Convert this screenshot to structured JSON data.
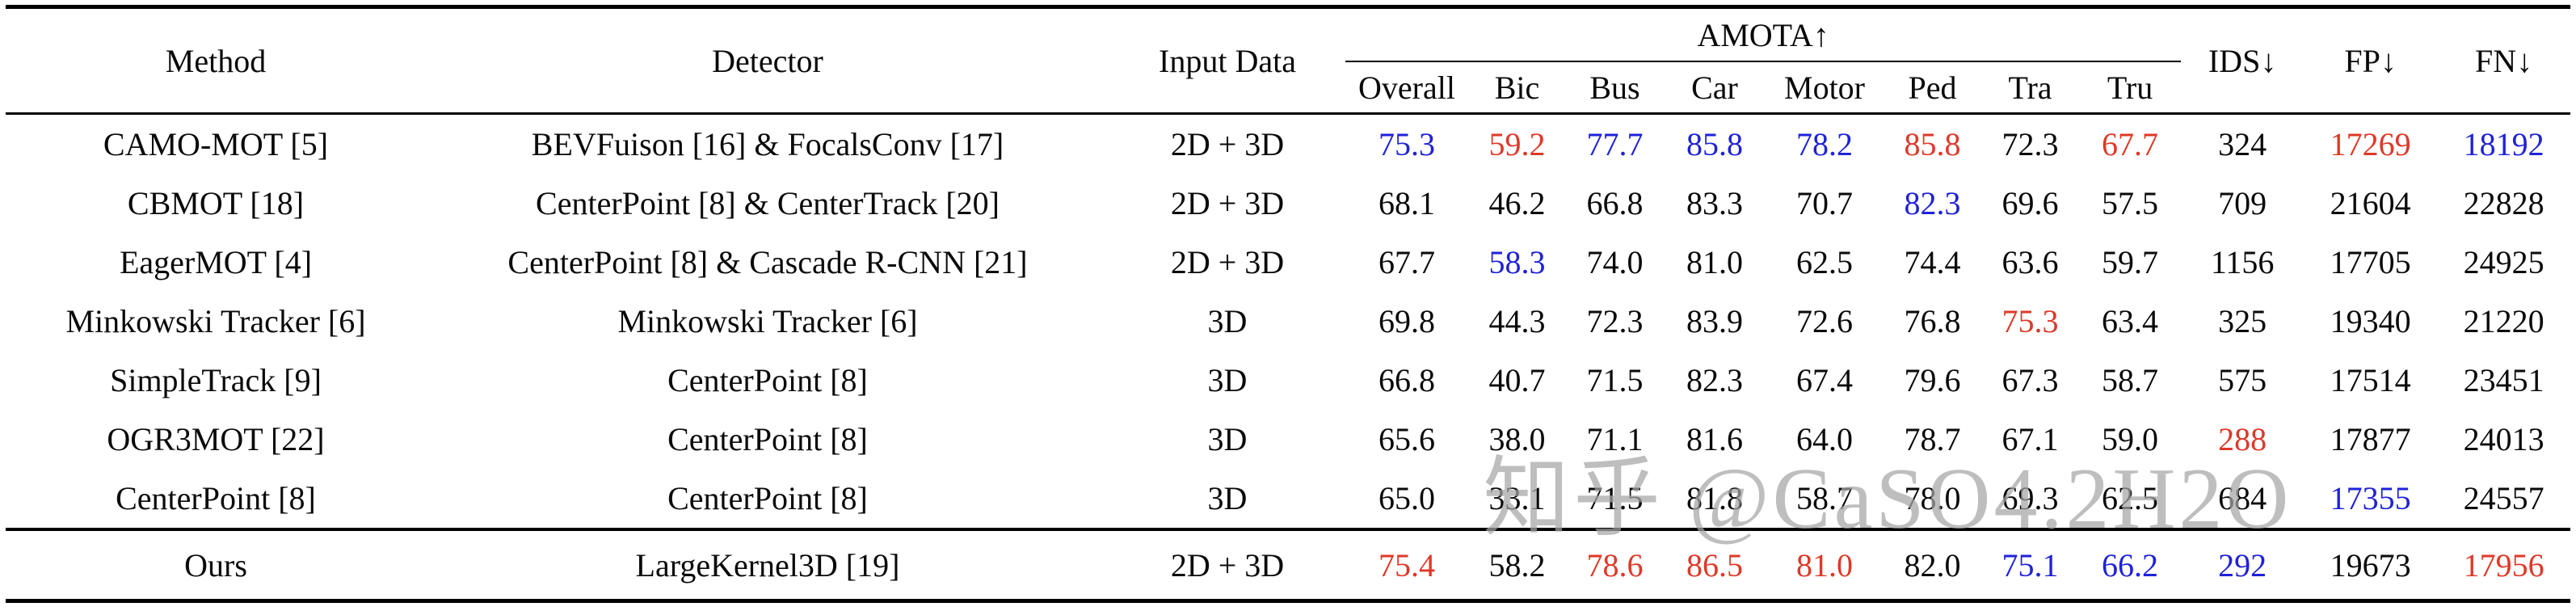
{
  "colors": {
    "best": "#df3827",
    "second": "#1f22d8",
    "normal": "#0a0a0a"
  },
  "watermark": "知乎 @CaSO4.2H2O",
  "table": {
    "headers": {
      "method": "Method",
      "detector": "Detector",
      "input_data": "Input Data",
      "amota_group": "AMOTA↑",
      "amota_subcols": [
        "Overall",
        "Bic",
        "Bus",
        "Car",
        "Motor",
        "Ped",
        "Tra",
        "Tru"
      ],
      "ids": "IDS↓",
      "fp": "FP↓",
      "fn": "FN↓"
    },
    "rows": [
      {
        "method": "CAMO-MOT [5]",
        "detector": "BEVFuison [16] & FocalsConv [17]",
        "input": "2D + 3D",
        "amota": [
          [
            "75.3",
            "second"
          ],
          [
            "59.2",
            "best"
          ],
          [
            "77.7",
            "second"
          ],
          [
            "85.8",
            "second"
          ],
          [
            "78.2",
            "second"
          ],
          [
            "85.8",
            "best"
          ],
          [
            "72.3",
            "normal"
          ],
          [
            "67.7",
            "best"
          ]
        ],
        "ids": [
          "324",
          "normal"
        ],
        "fp": [
          "17269",
          "best"
        ],
        "fn": [
          "18192",
          "second"
        ],
        "ours": false
      },
      {
        "method": "CBMOT [18]",
        "detector": "CenterPoint [8] & CenterTrack [20]",
        "input": "2D + 3D",
        "amota": [
          [
            "68.1",
            "normal"
          ],
          [
            "46.2",
            "normal"
          ],
          [
            "66.8",
            "normal"
          ],
          [
            "83.3",
            "normal"
          ],
          [
            "70.7",
            "normal"
          ],
          [
            "82.3",
            "second"
          ],
          [
            "69.6",
            "normal"
          ],
          [
            "57.5",
            "normal"
          ]
        ],
        "ids": [
          "709",
          "normal"
        ],
        "fp": [
          "21604",
          "normal"
        ],
        "fn": [
          "22828",
          "normal"
        ],
        "ours": false
      },
      {
        "method": "EagerMOT [4]",
        "detector": "CenterPoint [8] & Cascade R-CNN [21]",
        "input": "2D + 3D",
        "amota": [
          [
            "67.7",
            "normal"
          ],
          [
            "58.3",
            "second"
          ],
          [
            "74.0",
            "normal"
          ],
          [
            "81.0",
            "normal"
          ],
          [
            "62.5",
            "normal"
          ],
          [
            "74.4",
            "normal"
          ],
          [
            "63.6",
            "normal"
          ],
          [
            "59.7",
            "normal"
          ]
        ],
        "ids": [
          "1156",
          "normal"
        ],
        "fp": [
          "17705",
          "normal"
        ],
        "fn": [
          "24925",
          "normal"
        ],
        "ours": false
      },
      {
        "method": "Minkowski Tracker [6]",
        "detector": "Minkowski Tracker [6]",
        "input": "3D",
        "amota": [
          [
            "69.8",
            "normal"
          ],
          [
            "44.3",
            "normal"
          ],
          [
            "72.3",
            "normal"
          ],
          [
            "83.9",
            "normal"
          ],
          [
            "72.6",
            "normal"
          ],
          [
            "76.8",
            "normal"
          ],
          [
            "75.3",
            "best"
          ],
          [
            "63.4",
            "normal"
          ]
        ],
        "ids": [
          "325",
          "normal"
        ],
        "fp": [
          "19340",
          "normal"
        ],
        "fn": [
          "21220",
          "normal"
        ],
        "ours": false
      },
      {
        "method": "SimpleTrack [9]",
        "detector": "CenterPoint [8]",
        "input": "3D",
        "amota": [
          [
            "66.8",
            "normal"
          ],
          [
            "40.7",
            "normal"
          ],
          [
            "71.5",
            "normal"
          ],
          [
            "82.3",
            "normal"
          ],
          [
            "67.4",
            "normal"
          ],
          [
            "79.6",
            "normal"
          ],
          [
            "67.3",
            "normal"
          ],
          [
            "58.7",
            "normal"
          ]
        ],
        "ids": [
          "575",
          "normal"
        ],
        "fp": [
          "17514",
          "normal"
        ],
        "fn": [
          "23451",
          "normal"
        ],
        "ours": false
      },
      {
        "method": "OGR3MOT [22]",
        "detector": "CenterPoint [8]",
        "input": "3D",
        "amota": [
          [
            "65.6",
            "normal"
          ],
          [
            "38.0",
            "normal"
          ],
          [
            "71.1",
            "normal"
          ],
          [
            "81.6",
            "normal"
          ],
          [
            "64.0",
            "normal"
          ],
          [
            "78.7",
            "normal"
          ],
          [
            "67.1",
            "normal"
          ],
          [
            "59.0",
            "normal"
          ]
        ],
        "ids": [
          "288",
          "best"
        ],
        "fp": [
          "17877",
          "normal"
        ],
        "fn": [
          "24013",
          "normal"
        ],
        "ours": false
      },
      {
        "method": "CenterPoint [8]",
        "detector": "CenterPoint [8]",
        "input": "3D",
        "amota": [
          [
            "65.0",
            "normal"
          ],
          [
            "33.1",
            "normal"
          ],
          [
            "71.5",
            "normal"
          ],
          [
            "81.8",
            "normal"
          ],
          [
            "58.7",
            "normal"
          ],
          [
            "78.0",
            "normal"
          ],
          [
            "69.3",
            "normal"
          ],
          [
            "62.5",
            "normal"
          ]
        ],
        "ids": [
          "684",
          "normal"
        ],
        "fp": [
          "17355",
          "second"
        ],
        "fn": [
          "24557",
          "normal"
        ],
        "ours": false
      },
      {
        "method": "Ours",
        "detector": "LargeKernel3D [19]",
        "input": "2D + 3D",
        "amota": [
          [
            "75.4",
            "best"
          ],
          [
            "58.2",
            "normal"
          ],
          [
            "78.6",
            "best"
          ],
          [
            "86.5",
            "best"
          ],
          [
            "81.0",
            "best"
          ],
          [
            "82.0",
            "normal"
          ],
          [
            "75.1",
            "second"
          ],
          [
            "66.2",
            "second"
          ]
        ],
        "ids": [
          "292",
          "second"
        ],
        "fp": [
          "19673",
          "normal"
        ],
        "fn": [
          "17956",
          "best"
        ],
        "ours": true
      }
    ]
  }
}
